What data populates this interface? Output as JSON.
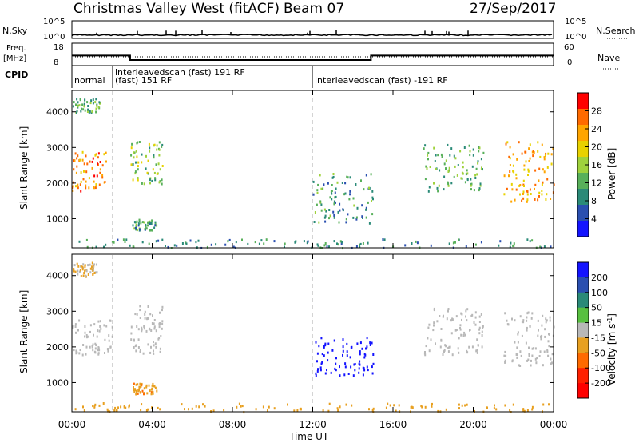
{
  "header": {
    "station": "Christmas Valley West (fitACF)",
    "beam": "Beam 07",
    "date": "27/Sep/2017"
  },
  "nsky_panel": {
    "left_label": "N.Sky",
    "left_ticks": [
      "10^5",
      "10^0"
    ],
    "right_ticks": [
      "10^5",
      "10^0"
    ],
    "right_label": "N.Search"
  },
  "freq_panel": {
    "left_label_1": "Freq.",
    "left_label_2": "[MHz]",
    "left_ticks": [
      "18",
      "8"
    ],
    "right_ticks": [
      "60",
      "0"
    ],
    "right_label": "Nave"
  },
  "cpid": {
    "label": "CPID",
    "segments": [
      {
        "text": "normal",
        "start_hour": 0.0
      },
      {
        "text": "interleavedscan (fast) 191 RF",
        "start_hour": 1.8
      },
      {
        "text": "(fast) 151 RF",
        "start_hour": 1.8
      },
      {
        "text": "interleavedscan (fast) -191 RF",
        "start_hour": 12.0
      }
    ]
  },
  "power_panel": {
    "ylabel": "Slant Range [km]",
    "yticks": [
      "4000",
      "3000",
      "2000",
      "1000"
    ],
    "colorbar_label": "Power [dB]",
    "colorbar_ticks": [
      "28",
      "24",
      "20",
      "16",
      "12",
      "8",
      "4"
    ],
    "colorbar_colors": [
      "#ff0000",
      "#ff6a00",
      "#ffa500",
      "#e8d200",
      "#9fd23c",
      "#58b05a",
      "#2a8a78",
      "#2a4fb0",
      "#1414ff"
    ]
  },
  "velocity_panel": {
    "ylabel": "Slant Range [km]",
    "yticks": [
      "4000",
      "3000",
      "2000",
      "1000"
    ],
    "colorbar_label": "Velocity [m s",
    "colorbar_label_sup": "-1",
    "colorbar_label_end": "]",
    "colorbar_ticks": [
      "200",
      "100",
      "50",
      "15",
      "-15",
      "-50",
      "-100",
      "-200"
    ],
    "colorbar_colors": [
      "#1414ff",
      "#2a4fb0",
      "#2a8a78",
      "#58c040",
      "#b8b8b8",
      "#e8a020",
      "#ff6a00",
      "#ff2000",
      "#ff0000"
    ]
  },
  "x_axis": {
    "label": "Time UT",
    "ticks": [
      "00:00",
      "04:00",
      "08:00",
      "12:00",
      "16:00",
      "20:00",
      "00:00"
    ]
  },
  "chart_data": {
    "type": "heatmap",
    "title": "Christmas Valley West (fitACF) Beam 07 27/Sep/2017",
    "xlabel": "Time UT",
    "ylabel": "Slant Range [km]",
    "x_range_hours": [
      0,
      24
    ],
    "y_range_km": [
      180,
      4600
    ],
    "frequency_MHz": [
      {
        "start_hour": 0.0,
        "end_hour": 2.9,
        "value": 12.5
      },
      {
        "start_hour": 2.9,
        "end_hour": 14.9,
        "value": 10.5
      },
      {
        "start_hour": 14.9,
        "end_hour": 24.0,
        "value": 12.5
      }
    ],
    "power_echo_regions": [
      {
        "t0": 0.0,
        "t1": 1.7,
        "r0": 1800,
        "r1": 2900,
        "power_dB": 26
      },
      {
        "t0": 0.0,
        "t1": 1.4,
        "r0": 4000,
        "r1": 4400,
        "power_dB": 12
      },
      {
        "t0": 2.9,
        "t1": 4.5,
        "r0": 2000,
        "r1": 3200,
        "power_dB": 14
      },
      {
        "t0": 3.0,
        "t1": 4.2,
        "r0": 700,
        "r1": 1000,
        "power_dB": 10
      },
      {
        "t0": 12.0,
        "t1": 15.0,
        "r0": 900,
        "r1": 2300,
        "power_dB": 10
      },
      {
        "t0": 17.5,
        "t1": 20.5,
        "r0": 1800,
        "r1": 3100,
        "power_dB": 12
      },
      {
        "t0": 21.5,
        "t1": 24.0,
        "r0": 1500,
        "r1": 3200,
        "power_dB": 24
      },
      {
        "t0": 0.0,
        "t1": 24.0,
        "r0": 200,
        "r1": 450,
        "power_dB": 8
      }
    ],
    "velocity_echo_regions": [
      {
        "t0": 0.0,
        "t1": 2.0,
        "r0": 1800,
        "r1": 2800,
        "velocity_ms": 0
      },
      {
        "t0": 0.0,
        "t1": 1.4,
        "r0": 4000,
        "r1": 4400,
        "velocity_ms": -20
      },
      {
        "t0": 2.9,
        "t1": 4.5,
        "r0": 1800,
        "r1": 3200,
        "velocity_ms": 0
      },
      {
        "t0": 3.0,
        "t1": 4.2,
        "r0": 700,
        "r1": 1000,
        "velocity_ms": -40
      },
      {
        "t0": 12.0,
        "t1": 15.0,
        "r0": 1200,
        "r1": 2300,
        "velocity_ms": 220
      },
      {
        "t0": 17.5,
        "t1": 20.5,
        "r0": 1800,
        "r1": 3100,
        "velocity_ms": 0
      },
      {
        "t0": 21.5,
        "t1": 24.0,
        "r0": 1500,
        "r1": 3000,
        "velocity_ms": 0
      },
      {
        "t0": 0.0,
        "t1": 24.0,
        "r0": 200,
        "r1": 450,
        "velocity_ms": -30
      }
    ]
  }
}
